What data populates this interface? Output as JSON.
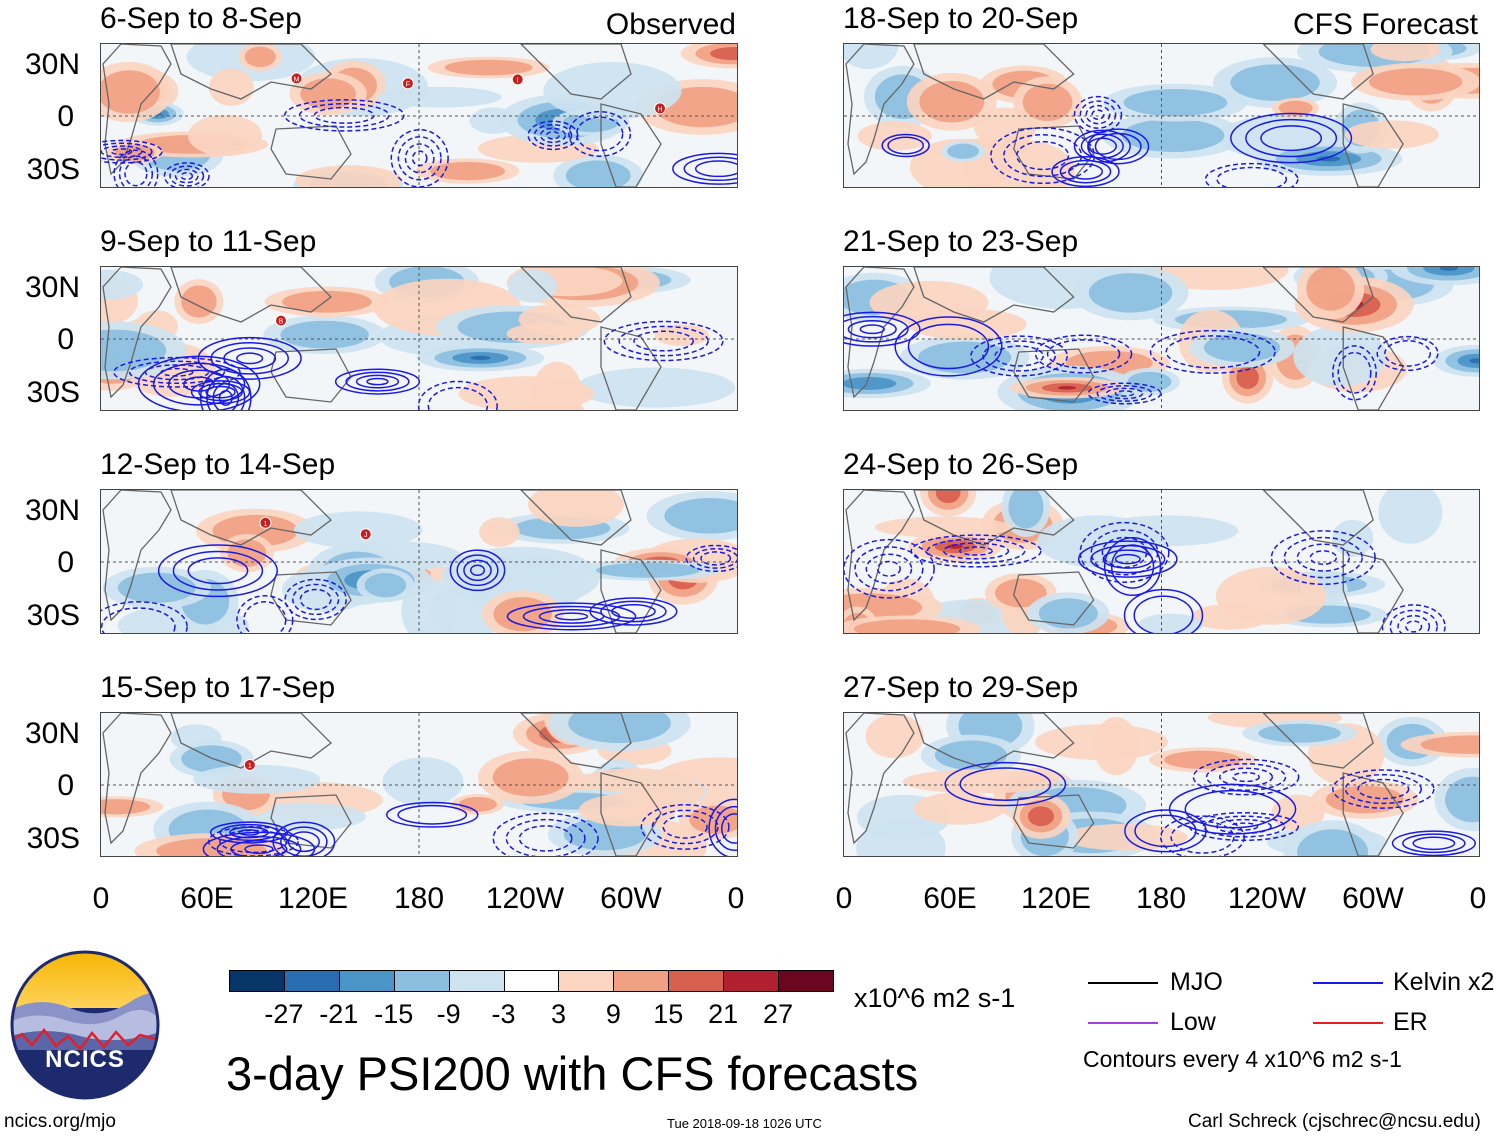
{
  "chart_data": {
    "type": "heatmap",
    "title": "3-day PSI200 with CFS forecasts",
    "units": "x10^6 m2 s-1",
    "colorbar": {
      "ticks": [
        "-27",
        "-21",
        "-15",
        "-9",
        "-3",
        "3",
        "9",
        "15",
        "21",
        "27"
      ],
      "colors": [
        "#083568",
        "#2a6cb0",
        "#4b94c8",
        "#8cbfdf",
        "#cde3f0",
        "#ffffff",
        "#fbd5c0",
        "#f1a183",
        "#d8604f",
        "#b0202e",
        "#6b0520"
      ]
    },
    "latitude_ticks": [
      "30N",
      "0",
      "30S"
    ],
    "longitude_ticks": [
      "0",
      "60E",
      "120E",
      "180",
      "120W",
      "60W",
      "0"
    ],
    "panels": [
      {
        "title": "6-Sep to 8-Sep",
        "tag": "Observed",
        "storms": [
          "M",
          "F",
          "I",
          "H"
        ]
      },
      {
        "title": "9-Sep to 11-Sep",
        "tag": "",
        "storms": [
          "B"
        ]
      },
      {
        "title": "12-Sep to 14-Sep",
        "tag": "",
        "storms": [
          "1",
          "J"
        ]
      },
      {
        "title": "15-Sep to 17-Sep",
        "tag": "",
        "storms": [
          "1"
        ]
      },
      {
        "title": "18-Sep to 20-Sep",
        "tag": "CFS Forecast",
        "storms": []
      },
      {
        "title": "21-Sep to 23-Sep",
        "tag": "",
        "storms": []
      },
      {
        "title": "24-Sep to 26-Sep",
        "tag": "",
        "storms": []
      },
      {
        "title": "27-Sep to 29-Sep",
        "tag": "",
        "storms": []
      }
    ],
    "legend": {
      "items": [
        {
          "label": "MJO",
          "color": "#000000"
        },
        {
          "label": "Kelvin x2",
          "color": "#1a1ae6"
        },
        {
          "label": "Low",
          "color": "#a040e0"
        },
        {
          "label": "ER",
          "color": "#e02020"
        }
      ],
      "note": "Contours every 4 x10^6 m2 s-1"
    }
  },
  "logo": {
    "text": "NCICS"
  },
  "footer": {
    "url": "ncics.org/mjo",
    "timestamp": "Tue 2018-09-18 1026 UTC",
    "author": "Carl Schreck (cjschrec@ncsu.edu)"
  }
}
